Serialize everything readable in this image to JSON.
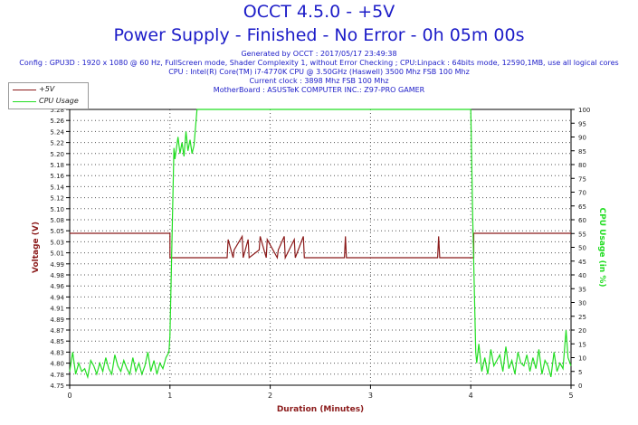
{
  "header": {
    "title": "OCCT 4.5.0 - +5V",
    "subtitle": "Power Supply - Finished - No Error - 0h 05m 00s",
    "info_lines": [
      "Generated by OCCT : 2017/05/17 23:49:38",
      "Config : GPU3D : 1920 x 1080 @ 60 Hz, FullScreen mode, Shader Complexity 1, without Error Checking ; CPU:Linpack : 64bits mode, 12590,1MB, use all logical cores",
      "CPU : Intel(R) Core(TM) i7-4770K CPU @ 3.50GHz (Haswell) 3500 Mhz FSB 100 Mhz",
      "Current clock : 3898 Mhz FSB 100 Mhz",
      "MotherBoard : ASUSTeK COMPUTER INC.: Z97-PRO GAMER"
    ]
  },
  "legend": {
    "items": [
      "+5V",
      "CPU Usage"
    ]
  },
  "colors": {
    "voltage": "#8b1a1a",
    "cpu": "#22dd22",
    "title": "#1c1cc8",
    "grid": "#555555"
  },
  "chart_data": {
    "type": "line",
    "xlabel": "Duration (Minutes)",
    "ylabel": "Voltage (V)",
    "y2label": "CPU Usage (in %)",
    "xlim": [
      0,
      5
    ],
    "ylim": [
      4.75,
      5.28
    ],
    "y2lim": [
      0,
      100
    ],
    "x_ticks": [
      "0",
      "1",
      "2",
      "3",
      "4",
      "5"
    ],
    "y_ticks": [
      "4.75",
      "4.78",
      "4.80",
      "4.83",
      "4.85",
      "4.87",
      "4.89",
      "4.91",
      "4.94",
      "4.96",
      "4.98",
      "4.99",
      "5.01",
      "5.03",
      "5.05",
      "5.08",
      "5.10",
      "5.12",
      "5.14",
      "5.16",
      "5.18",
      "5.20",
      "5.22",
      "5.24",
      "5.26",
      "5.28"
    ],
    "y2_ticks": [
      "0",
      "5",
      "10",
      "15",
      "20",
      "25",
      "30",
      "35",
      "40",
      "45",
      "50",
      "55",
      "60",
      "65",
      "70",
      "75",
      "80",
      "85",
      "90",
      "95",
      "100"
    ],
    "grid": true,
    "legend_position": "top-left",
    "series": [
      {
        "name": "+5V",
        "axis": "left",
        "x": [
          0,
          1.0,
          1.0,
          1.57,
          1.58,
          1.63,
          1.64,
          1.72,
          1.73,
          1.78,
          1.79,
          1.89,
          1.9,
          1.96,
          1.97,
          2.07,
          2.08,
          2.14,
          2.15,
          2.24,
          2.25,
          2.33,
          2.34,
          2.74,
          2.75,
          2.76,
          2.77,
          3.67,
          3.68,
          3.69,
          3.7,
          4.03,
          4.03,
          5.0
        ],
        "values": [
          5.042,
          5.042,
          4.995,
          4.995,
          5.03,
          4.995,
          5.01,
          5.036,
          4.995,
          5.03,
          4.995,
          5.01,
          5.036,
          4.995,
          5.03,
          4.995,
          5.01,
          5.036,
          4.995,
          5.03,
          4.995,
          5.036,
          4.995,
          4.995,
          5.036,
          4.995,
          4.995,
          4.995,
          5.036,
          4.995,
          4.995,
          4.995,
          5.042,
          5.042
        ]
      },
      {
        "name": "CPU Usage",
        "axis": "right",
        "x": [
          0.0,
          0.03,
          0.06,
          0.09,
          0.12,
          0.15,
          0.18,
          0.21,
          0.24,
          0.27,
          0.3,
          0.33,
          0.36,
          0.39,
          0.42,
          0.45,
          0.48,
          0.51,
          0.54,
          0.57,
          0.6,
          0.63,
          0.66,
          0.69,
          0.72,
          0.75,
          0.78,
          0.81,
          0.84,
          0.87,
          0.9,
          0.93,
          0.96,
          0.99,
          1.0,
          1.04,
          1.05,
          1.08,
          1.1,
          1.12,
          1.14,
          1.16,
          1.18,
          1.2,
          1.22,
          1.24,
          1.27,
          1.3,
          4.0,
          4.02,
          4.05,
          4.06,
          4.08,
          4.11,
          4.14,
          4.17,
          4.2,
          4.23,
          4.26,
          4.29,
          4.32,
          4.35,
          4.38,
          4.41,
          4.44,
          4.47,
          4.5,
          4.53,
          4.56,
          4.59,
          4.62,
          4.65,
          4.68,
          4.71,
          4.74,
          4.77,
          4.8,
          4.83,
          4.86,
          4.89,
          4.92,
          4.95,
          4.97,
          5.0
        ],
        "values": [
          5,
          12,
          4,
          8,
          5,
          6,
          3,
          9,
          7,
          4,
          8,
          5,
          10,
          6,
          4,
          11,
          7,
          5,
          9,
          6,
          4,
          10,
          5,
          8,
          4,
          7,
          12,
          5,
          9,
          4,
          8,
          6,
          10,
          12,
          18,
          86,
          82,
          90,
          84,
          88,
          83,
          92,
          85,
          89,
          84,
          87,
          100,
          100,
          100,
          60,
          12,
          8,
          15,
          5,
          10,
          4,
          13,
          7,
          9,
          11,
          5,
          14,
          6,
          9,
          4,
          12,
          8,
          7,
          11,
          5,
          10,
          6,
          13,
          4,
          9,
          7,
          3,
          12,
          5,
          8,
          6,
          20,
          10,
          7
        ]
      }
    ]
  }
}
